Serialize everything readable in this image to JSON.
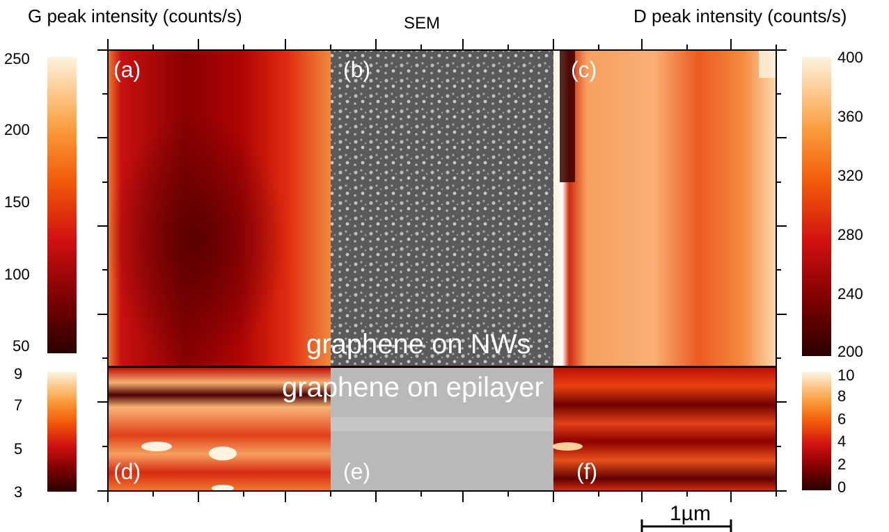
{
  "titles": {
    "left": "G peak intensity (counts/s)",
    "center": "SEM",
    "right": "D peak intensity (counts/s)"
  },
  "panels": {
    "a": "(a)",
    "b": "(b)",
    "c": "(c)",
    "d": "(d)",
    "e": "(e)",
    "f": "(f)"
  },
  "region_labels": {
    "top": "graphene on NWs",
    "bottom": "graphene on epilayer"
  },
  "colorbars": {
    "g_top_ticks": [
      "250",
      "200",
      "150",
      "100",
      "50"
    ],
    "g_bottom_ticks": [
      "9",
      "7",
      "5",
      "3"
    ],
    "d_top_ticks": [
      "400",
      "360",
      "320",
      "280",
      "240",
      "200"
    ],
    "d_bottom_ticks": [
      "10",
      "8",
      "6",
      "4",
      "2",
      "0"
    ],
    "colormap": [
      "#2a0000",
      "#7a0000",
      "#d01010",
      "#f25a0a",
      "#fa9a3a",
      "#fcd09a",
      "#fbf3e0"
    ]
  },
  "scale_bar": "1µm"
}
